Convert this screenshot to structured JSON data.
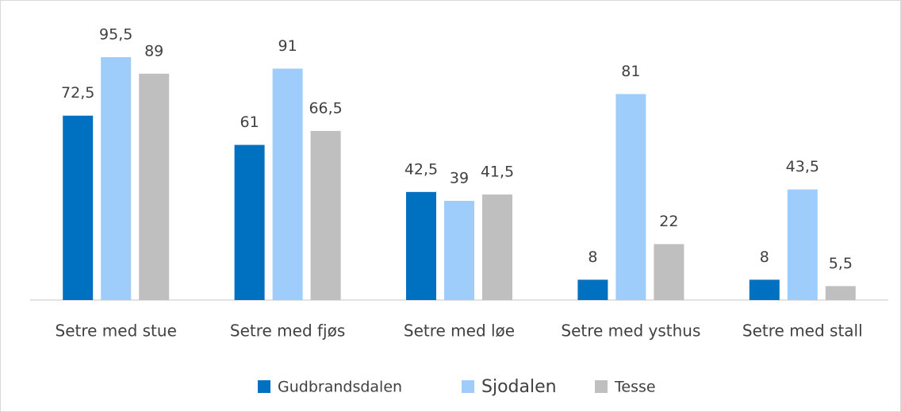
{
  "chart_data": {
    "type": "bar",
    "categories": [
      "Setre med stue",
      "Setre med fjøs",
      "Setre med løe",
      "Setre med ysthus",
      "Setre med stall"
    ],
    "series": [
      {
        "name": "Gudbrandsdalen",
        "color": "#0070c0",
        "values": [
          72.5,
          61,
          42.5,
          8,
          8
        ],
        "value_labels": [
          "72,5",
          "61",
          "42,5",
          "8",
          "8"
        ]
      },
      {
        "name": "Sjodalen",
        "color": "#9fcdfb",
        "values": [
          95.5,
          91,
          39,
          81,
          43.5
        ],
        "value_labels": [
          "95,5",
          "91",
          "39",
          "81",
          "43,5"
        ]
      },
      {
        "name": "Tesse",
        "color": "#bfbfbf",
        "values": [
          89,
          66.5,
          41.5,
          22,
          5.5
        ],
        "value_labels": [
          "89",
          "66,5",
          "41,5",
          "22",
          "5,5"
        ]
      }
    ],
    "legend": "bottom"
  }
}
